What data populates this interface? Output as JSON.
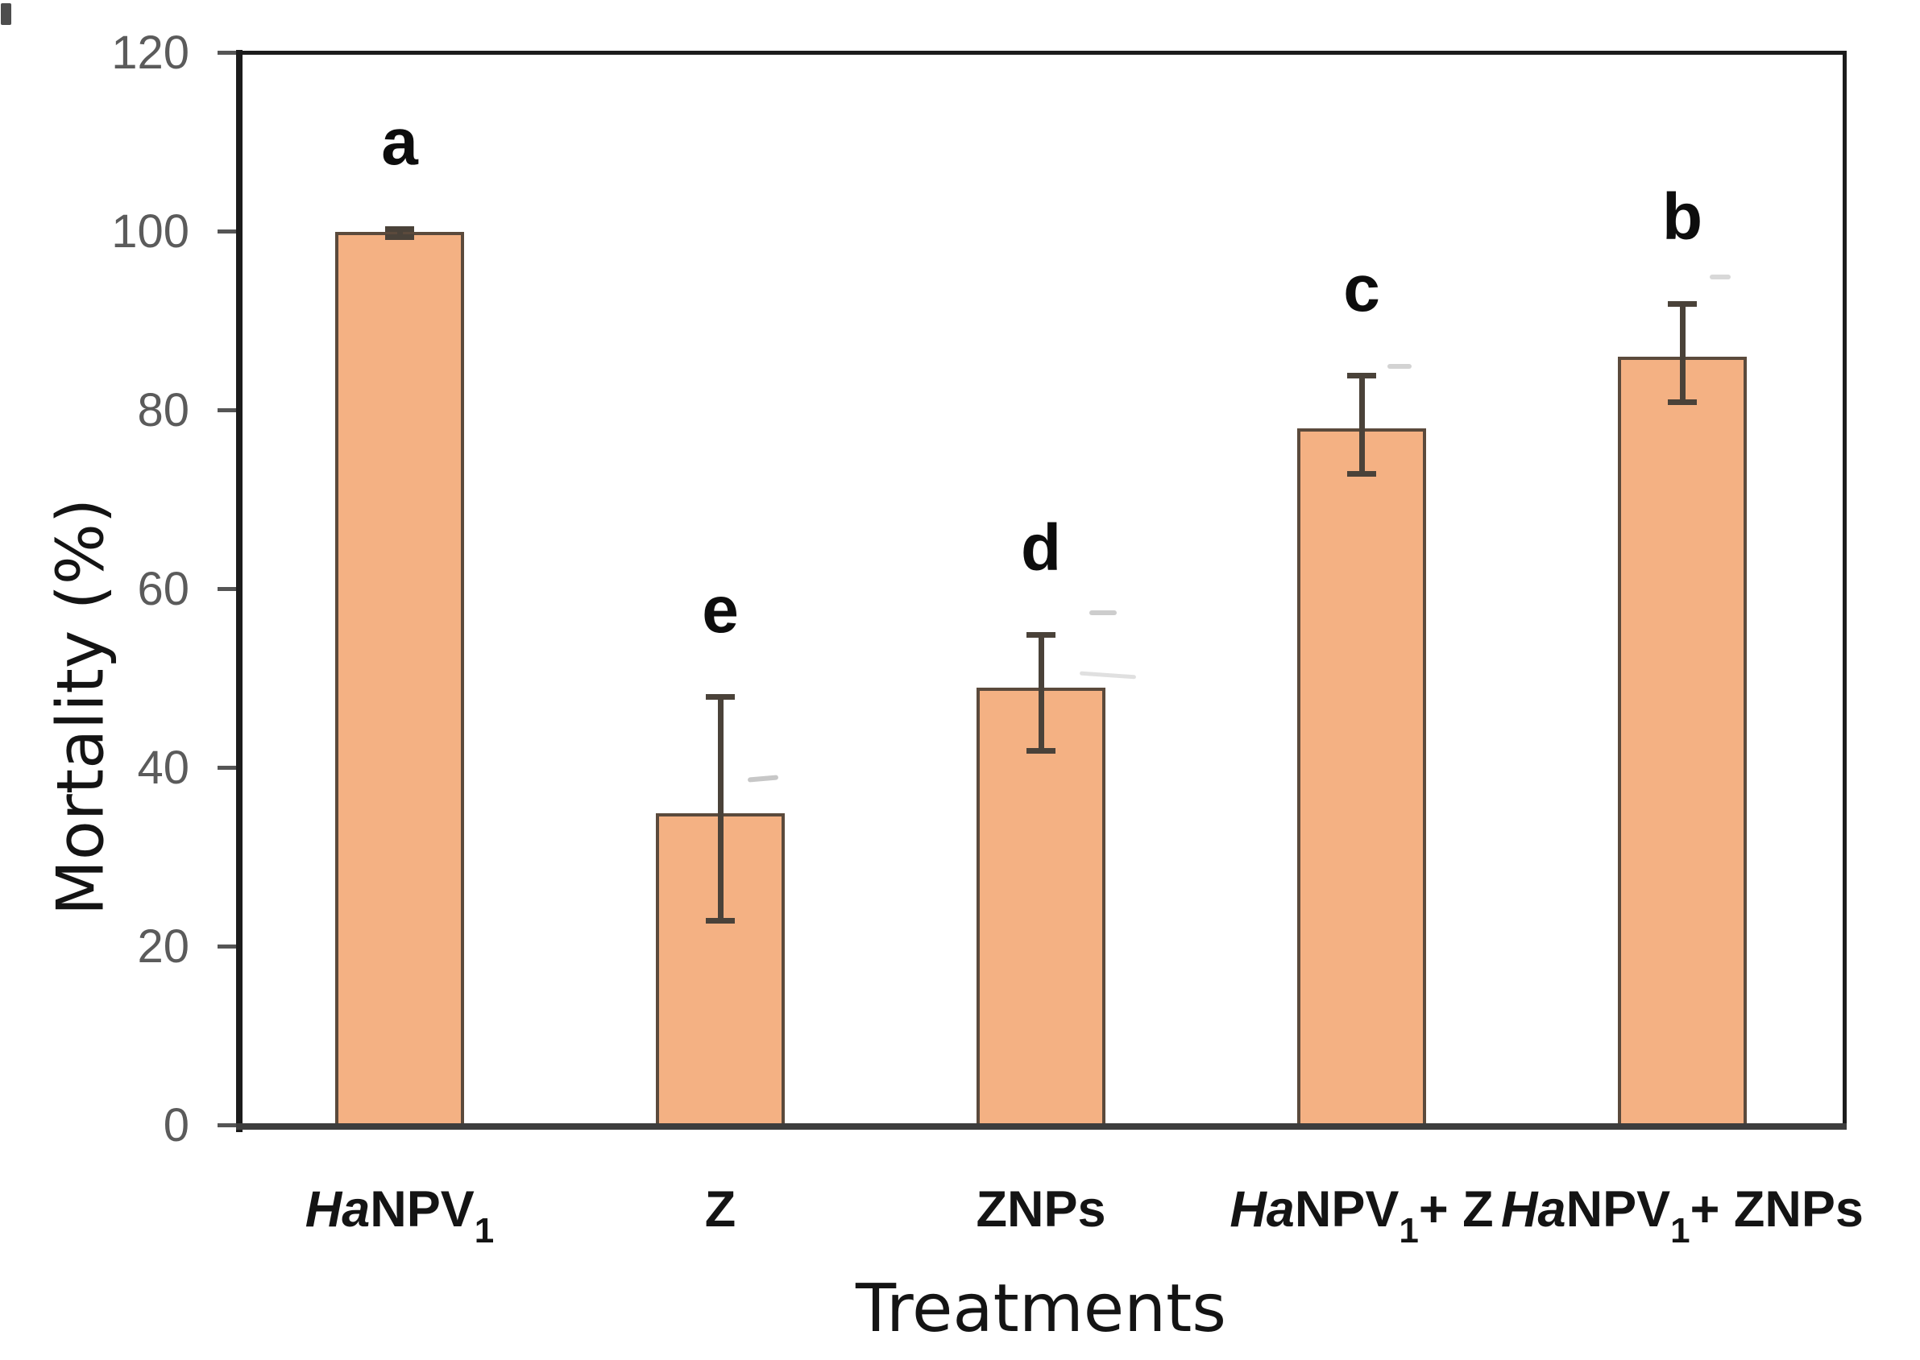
{
  "figure": {
    "background": "#ffffff"
  },
  "chart_data": {
    "type": "bar",
    "title": "",
    "xlabel": "Treatments",
    "ylabel": "Mortality (%)",
    "categories": [
      "HaNPV1",
      "Z",
      "ZNPs",
      "HaNPV1+ Z",
      "HaNPV1+ ZNPs"
    ],
    "categories_rich": [
      [
        {
          "text": "Ha",
          "style": "bi"
        },
        {
          "text": "NPV",
          "style": "b"
        },
        {
          "text": "1",
          "style": "sub"
        }
      ],
      [
        {
          "text": "Z",
          "style": "b"
        }
      ],
      [
        {
          "text": "ZNPs",
          "style": "b"
        }
      ],
      [
        {
          "text": "Ha",
          "style": "bi"
        },
        {
          "text": "NPV",
          "style": "b"
        },
        {
          "text": "1",
          "style": "sub"
        },
        {
          "text": "+ Z",
          "style": "b"
        }
      ],
      [
        {
          "text": "Ha",
          "style": "bi"
        },
        {
          "text": "NPV",
          "style": "b"
        },
        {
          "text": "1",
          "style": "sub"
        },
        {
          "text": "+ ZNPs",
          "style": "b"
        }
      ]
    ],
    "values": [
      100,
      35,
      49,
      78,
      86
    ],
    "error_low": [
      99.5,
      23,
      42,
      73,
      81
    ],
    "error_high": [
      100.4,
      48,
      55,
      84,
      92
    ],
    "sig_letters": [
      "a",
      "e",
      "d",
      "c",
      "b"
    ],
    "ylim": [
      0,
      120
    ],
    "yticks": [
      0,
      20,
      40,
      60,
      80,
      100,
      120
    ],
    "grid": false,
    "legend": null,
    "colors": {
      "bar_fill": "#F4B183",
      "bar_border": "#5B4A3C",
      "error_bar": "#4A4239",
      "tick_label": "#5B5B5B",
      "axis_title": "#141414",
      "sig_letter": "#0D0D0D",
      "axis_line": "#1C1C1C",
      "x_axis_line": "#3D3D3D"
    }
  }
}
